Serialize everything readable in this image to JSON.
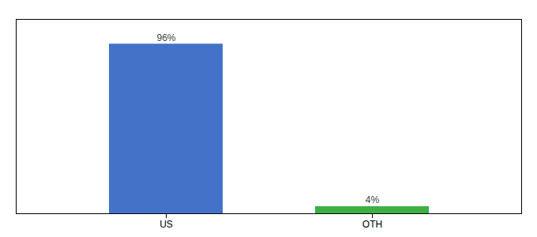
{
  "chart_data": {
    "type": "bar",
    "categories": [
      "US",
      "OTH"
    ],
    "values": [
      96,
      4
    ],
    "value_labels": [
      "96%",
      "4%"
    ],
    "colors": [
      "#4472c9",
      "#3cb043"
    ],
    "ylim": [
      0,
      110
    ],
    "yticks": [],
    "data_labels": true,
    "tick_labels": "x",
    "grid": false
  }
}
